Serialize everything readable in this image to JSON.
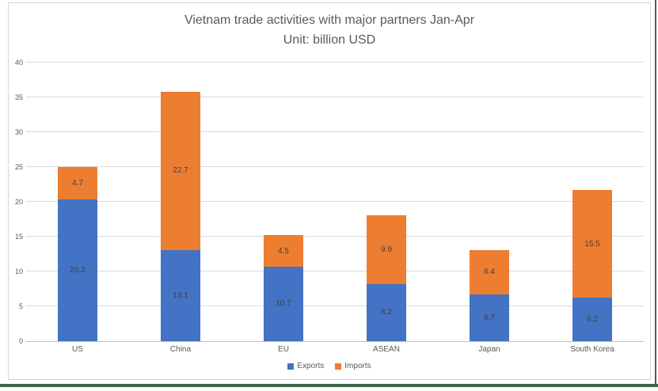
{
  "frame": {
    "chart_border_color": "#d6d6d6",
    "window_edge_color": "#3f664d",
    "background_color": "#ffffff"
  },
  "chart_data": {
    "type": "bar",
    "stacked": true,
    "title": "Vietnam trade activities with major partners Jan-Apr",
    "subtitle": "Unit: billion USD",
    "categories": [
      "US",
      "China",
      "EU",
      "ASEAN",
      "Japan",
      "South Korea"
    ],
    "series": [
      {
        "name": "Exports",
        "color": "#4472c4",
        "values": [
          20.3,
          13.1,
          10.7,
          8.2,
          6.7,
          6.2
        ]
      },
      {
        "name": "Imports",
        "color": "#ed7d31",
        "values": [
          4.7,
          22.7,
          4.5,
          9.9,
          6.4,
          15.5
        ]
      }
    ],
    "ylim": [
      0,
      40
    ],
    "ytick_step": 5,
    "yticks": [
      0,
      5,
      10,
      15,
      20,
      25,
      30,
      35,
      40
    ],
    "grid": true,
    "legend_position": "bottom",
    "label_color": "#404040",
    "axis_text_color": "#595959",
    "gridline_color": "#d9d9d9"
  }
}
